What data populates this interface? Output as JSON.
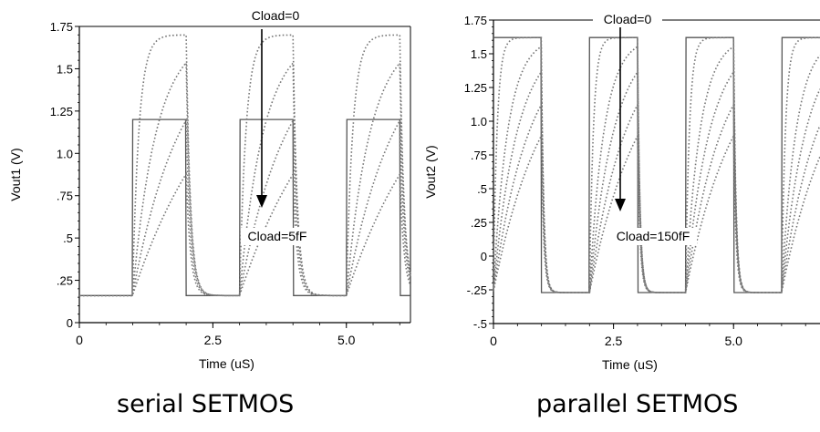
{
  "chart_data": [
    {
      "type": "line",
      "title": "",
      "xlabel": "Time (uS)",
      "ylabel": "Vout1 (V)",
      "xlim": [
        0,
        6.2
      ],
      "ylim": [
        0,
        1.75
      ],
      "x_ticks": [
        "0",
        "2.5",
        "5.0"
      ],
      "y_ticks": [
        "0",
        ".25",
        ".5",
        ".75",
        "1.0",
        "1.25",
        "1.5",
        "1.75"
      ],
      "grid": false,
      "square_wave": {
        "period": 2.0,
        "high_from": 1.0,
        "high_to": 2.0,
        "low": 0.16,
        "high": 1.2,
        "line_style": "solid"
      },
      "series": [
        {
          "tau": 0.12,
          "max": 1.7,
          "style": "dotted"
        },
        {
          "tau": 0.45,
          "max": 1.7,
          "style": "dotted"
        },
        {
          "tau": 0.9,
          "max": 1.7,
          "style": "dotted"
        },
        {
          "tau": 1.6,
          "max": 1.7,
          "style": "dotted"
        }
      ],
      "decay_tau": 0.08,
      "annotations": {
        "top": "Cload=0",
        "bottom": "Cload=5fF"
      },
      "caption": "serial SETMOS"
    },
    {
      "type": "line",
      "title": "",
      "xlabel": "Time (uS)",
      "ylabel": "Vout2 (V)",
      "xlim": [
        0,
        6.8
      ],
      "ylim": [
        -0.5,
        1.75
      ],
      "x_ticks": [
        "0",
        "2.5",
        "5.0"
      ],
      "y_ticks": [
        "-.5",
        "-.25",
        "0",
        ".25",
        ".5",
        ".75",
        "1.0",
        "1.25",
        "1.5",
        "1.75"
      ],
      "grid": false,
      "square_wave": {
        "period": 2.0,
        "high_from": 0.0,
        "high_to": 1.0,
        "low": -0.27,
        "high": 1.62,
        "line_style": "solid"
      },
      "series": [
        {
          "tau": 0.08,
          "max": 1.62,
          "style": "dotted"
        },
        {
          "tau": 0.3,
          "max": 1.62,
          "style": "dotted"
        },
        {
          "tau": 0.5,
          "max": 1.62,
          "style": "dotted"
        },
        {
          "tau": 0.75,
          "max": 1.62,
          "style": "dotted"
        },
        {
          "tau": 1.05,
          "max": 1.62,
          "style": "dotted"
        }
      ],
      "decay_tau": 0.05,
      "annotations": {
        "top": "Cload=0",
        "bottom": "Cload=150fF"
      },
      "caption": "parallel SETMOS"
    }
  ]
}
